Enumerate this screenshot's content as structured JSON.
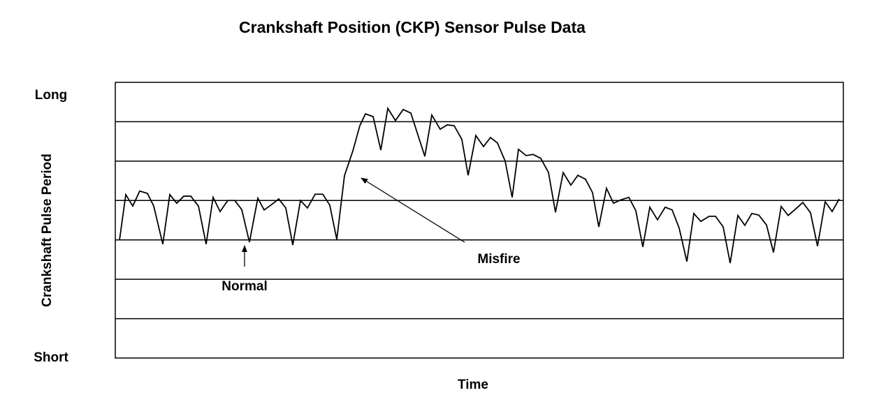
{
  "chart_data": {
    "type": "line",
    "title": "Crankshaft Position (CKP) Sensor Pulse Data",
    "x_label": "Time",
    "y_label": "Crankshaft Pulse Period",
    "xlim": [
      0,
      104.2
    ],
    "ylim": [
      0,
      7
    ],
    "yticks": [
      {
        "value": 0,
        "label": "Short"
      },
      {
        "value": 7,
        "label": "Long"
      }
    ],
    "ygrid": [
      1,
      2,
      3,
      4,
      5,
      6
    ],
    "grid": true,
    "color": "#000000",
    "x": [
      0.6,
      1.5,
      2.5,
      3.5,
      4.6,
      5.5,
      6.8,
      7.8,
      8.8,
      9.8,
      10.8,
      11.9,
      13.0,
      14.0,
      15.0,
      16.1,
      17.1,
      18.1,
      19.2,
      20.4,
      21.3,
      22.4,
      23.4,
      24.4,
      25.4,
      26.5,
      27.5,
      28.6,
      29.7,
      30.7,
      31.7,
      32.8,
      34.0,
      35.0,
      35.8,
      36.9,
      38.0,
      39.0,
      40.1,
      41.2,
      42.3,
      44.3,
      45.3,
      46.5,
      47.5,
      48.5,
      49.6,
      50.5,
      51.6,
      52.7,
      53.7,
      54.7,
      55.8,
      56.8,
      57.7,
      58.8,
      59.8,
      60.9,
      62.0,
      63.0,
      64.1,
      65.2,
      66.2,
      67.3,
      68.3,
      69.2,
      70.3,
      71.3,
      72.4,
      73.5,
      74.5,
      75.5,
      76.5,
      77.6,
      78.7,
      79.7,
      80.7,
      81.8,
      82.8,
      83.8,
      85.0,
      85.9,
      87.0,
      88.0,
      89.1,
      90.1,
      91.1,
      92.1,
      93.2,
      94.2,
      95.3,
      96.3,
      97.4,
      98.4,
      99.5,
      100.5,
      101.6,
      102.6,
      103.6
    ],
    "values": [
      2.99,
      4.15,
      3.86,
      4.24,
      4.18,
      3.86,
      2.89,
      4.15,
      3.93,
      4.11,
      4.11,
      3.86,
      2.89,
      4.08,
      3.72,
      4.0,
      4.0,
      3.77,
      2.94,
      4.06,
      3.76,
      3.9,
      4.04,
      3.81,
      2.87,
      4.0,
      3.81,
      4.16,
      4.16,
      3.88,
      3.01,
      4.63,
      5.26,
      5.9,
      6.2,
      6.13,
      5.28,
      6.34,
      6.03,
      6.31,
      6.22,
      5.12,
      6.17,
      5.81,
      5.92,
      5.9,
      5.55,
      4.64,
      5.65,
      5.37,
      5.6,
      5.46,
      5.0,
      4.08,
      5.3,
      5.14,
      5.17,
      5.07,
      4.71,
      3.7,
      4.71,
      4.39,
      4.64,
      4.54,
      4.2,
      3.33,
      4.31,
      3.93,
      4.02,
      4.08,
      3.74,
      2.82,
      3.83,
      3.51,
      3.83,
      3.76,
      3.3,
      2.45,
      3.67,
      3.47,
      3.6,
      3.6,
      3.33,
      2.41,
      3.62,
      3.37,
      3.67,
      3.63,
      3.38,
      2.68,
      3.85,
      3.62,
      3.79,
      3.95,
      3.69,
      2.84,
      3.97,
      3.72,
      4.04
    ],
    "annotations": [
      {
        "text": "Normal",
        "x": 18.5,
        "y": 2.85
      },
      {
        "text": "Misfire",
        "x": 35.2,
        "y": 4.57
      }
    ]
  }
}
